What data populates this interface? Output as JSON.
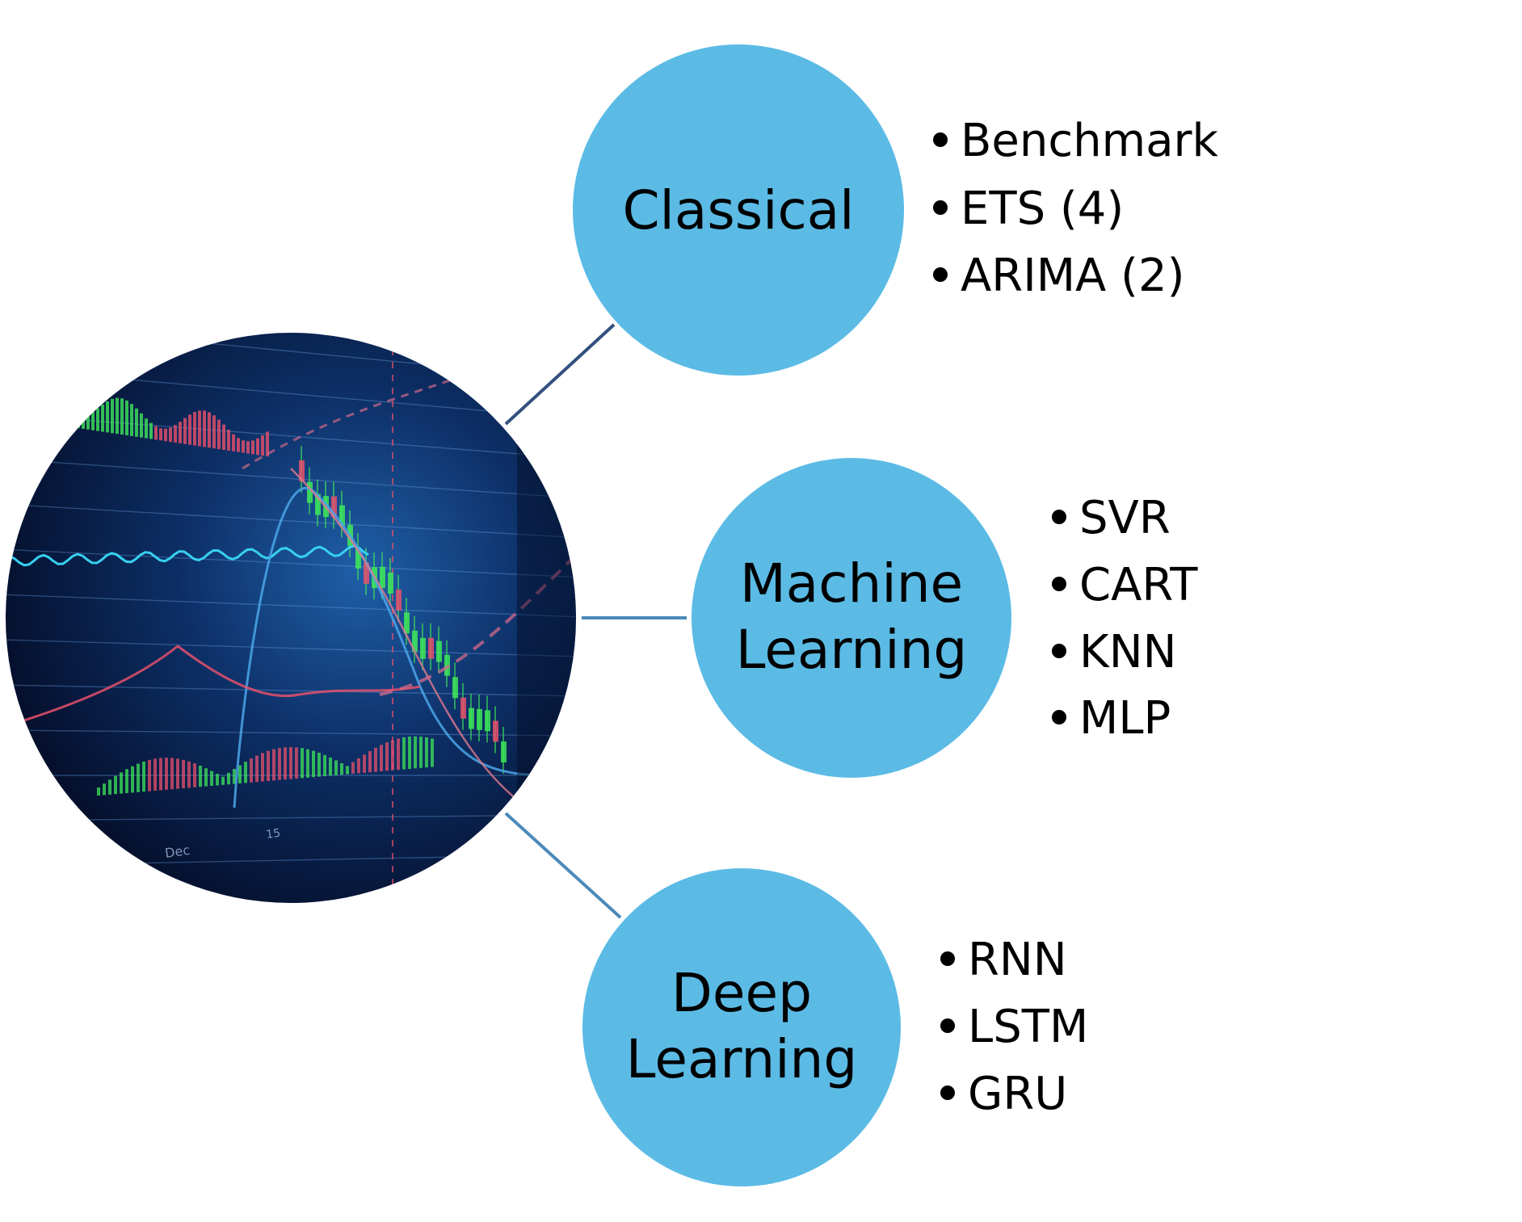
{
  "colors": {
    "node_fill": "#5bbbe5",
    "connector_top": "#33507e",
    "connector_middle": "#4b8ab9",
    "connector_bottom": "#4b8ab9",
    "chart_bg_dark": "#040b24",
    "chart_bg_mid": "#0b2a5c",
    "chart_green": "#3ee65a",
    "chart_red": "#e8506c",
    "chart_cyan": "#37d0f0"
  },
  "central_image": {
    "icon": "financial-chart-image",
    "axis_labels": [
      "Dec",
      "15"
    ]
  },
  "nodes": [
    {
      "id": "classical",
      "label_lines": [
        "Classical"
      ],
      "items": [
        "Benchmark",
        "ETS (4)",
        "ARIMA (2)"
      ]
    },
    {
      "id": "machine-learning",
      "label_lines": [
        "Machine",
        "Learning"
      ],
      "items": [
        "SVR",
        "CART",
        "KNN",
        "MLP"
      ]
    },
    {
      "id": "deep-learning",
      "label_lines": [
        "Deep",
        "Learning"
      ],
      "items": [
        "RNN",
        "LSTM",
        "GRU"
      ]
    }
  ]
}
